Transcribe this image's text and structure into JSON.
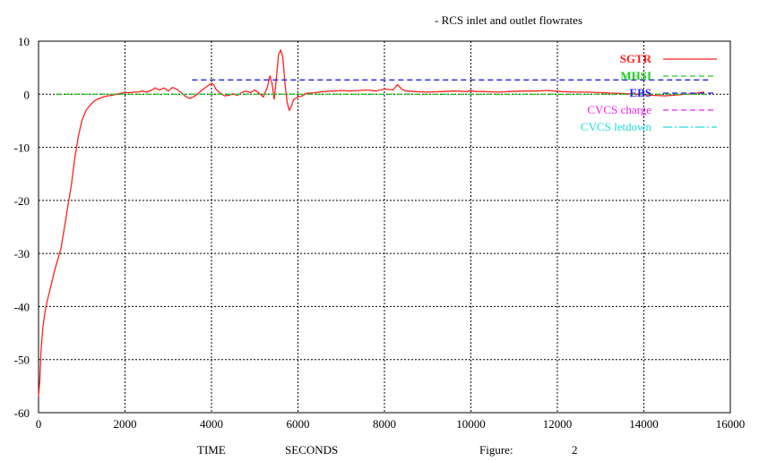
{
  "chart_data": {
    "type": "line",
    "title": "- RCS inlet and outlet flowrates",
    "xlabel_left": "TIME",
    "xlabel_right": "SECONDS",
    "figure_label": "Figure:",
    "figure_number": "2",
    "xlim": [
      0,
      16000
    ],
    "ylim": [
      -60,
      10
    ],
    "xticks": [
      0,
      2000,
      4000,
      6000,
      8000,
      10000,
      12000,
      14000,
      16000
    ],
    "yticks": [
      10,
      0,
      -10,
      -20,
      -30,
      -40,
      -50,
      -60
    ],
    "grid": true,
    "legend_position": "top-right",
    "series": [
      {
        "name": "SGTR",
        "color": "#ff2020",
        "dash": "solid",
        "x": [
          0,
          30,
          60,
          100,
          150,
          200,
          260,
          320,
          380,
          450,
          520,
          600,
          680,
          760,
          840,
          920,
          1000,
          1100,
          1200,
          1300,
          1400,
          1500,
          1600,
          1700,
          1800,
          1900,
          2000,
          2100,
          2200,
          2300,
          2400,
          2500,
          2600,
          2700,
          2800,
          2900,
          3000,
          3100,
          3200,
          3300,
          3400,
          3500,
          3600,
          3700,
          3800,
          3900,
          3950,
          4000,
          4050,
          4100,
          4200,
          4300,
          4400,
          4500,
          4600,
          4700,
          4800,
          4900,
          5000,
          5100,
          5200,
          5300,
          5350,
          5400,
          5450,
          5500,
          5550,
          5600,
          5650,
          5700,
          5750,
          5800,
          5850,
          5900,
          6000,
          6100,
          6200,
          6400,
          6600,
          6800,
          7000,
          7200,
          7400,
          7600,
          7800,
          8000,
          8200,
          8300,
          8400,
          8500,
          8700,
          9000,
          9300,
          9600,
          9900,
          10000,
          10100,
          10300,
          10600,
          10900,
          11200,
          11500,
          11800,
          12100,
          12400,
          12700,
          13000,
          13300,
          13600,
          13900,
          14200,
          14500,
          14800,
          15100,
          15300,
          15400
        ],
        "y": [
          -57,
          -54,
          -48,
          -44,
          -41,
          -39,
          -37,
          -35,
          -33,
          -31,
          -29,
          -25,
          -21,
          -17,
          -12,
          -8,
          -5,
          -3,
          -2,
          -1.2,
          -0.8,
          -0.5,
          -0.3,
          -0.2,
          0,
          0.2,
          0.3,
          0.3,
          0.4,
          0.4,
          0.6,
          0.4,
          0.7,
          1.2,
          0.8,
          1.2,
          0.6,
          1.3,
          0.9,
          0.3,
          -0.4,
          -0.8,
          -0.4,
          0.2,
          0.9,
          1.5,
          1.8,
          2,
          1.8,
          1.0,
          0.2,
          -0.3,
          -0.2,
          0.1,
          -0.2,
          0.3,
          0.6,
          0.3,
          0.8,
          0.2,
          -0.5,
          1.5,
          3.5,
          2.0,
          -1.0,
          3.0,
          7.5,
          8.3,
          7.0,
          2.0,
          -1.5,
          -3.0,
          -2.2,
          -1.0,
          -0.5,
          -0.3,
          0.2,
          0.3,
          0.5,
          0.6,
          0.7,
          0.6,
          0.7,
          0.8,
          0.6,
          1.0,
          0.8,
          1.8,
          1.0,
          0.6,
          0.5,
          0.4,
          0.5,
          0.6,
          0.5,
          0.7,
          0.5,
          0.5,
          0.4,
          0.5,
          0.6,
          0.6,
          0.7,
          0.5,
          0.4,
          0.4,
          0.3,
          0.2,
          0.1,
          0.0,
          -0.2,
          -0.3,
          -0.1,
          0.1,
          0.3,
          0.4
        ]
      },
      {
        "name": "MHSI",
        "color": "#20cc20",
        "dash": "6,4",
        "x": [
          400,
          15500
        ],
        "y": [
          0,
          0
        ]
      },
      {
        "name": "EBS",
        "color": "#2020ee",
        "dash": "6,4",
        "x": [
          3550,
          15500
        ],
        "y": [
          2.7,
          2.7
        ]
      },
      {
        "name": "CVCS charge",
        "color": "#ee22ee",
        "dash": "6,4",
        "x": [],
        "y": []
      },
      {
        "name": "CVCS letdown",
        "color": "#22dddd",
        "dash": "10,3,2,3",
        "x": [],
        "y": []
      }
    ]
  }
}
